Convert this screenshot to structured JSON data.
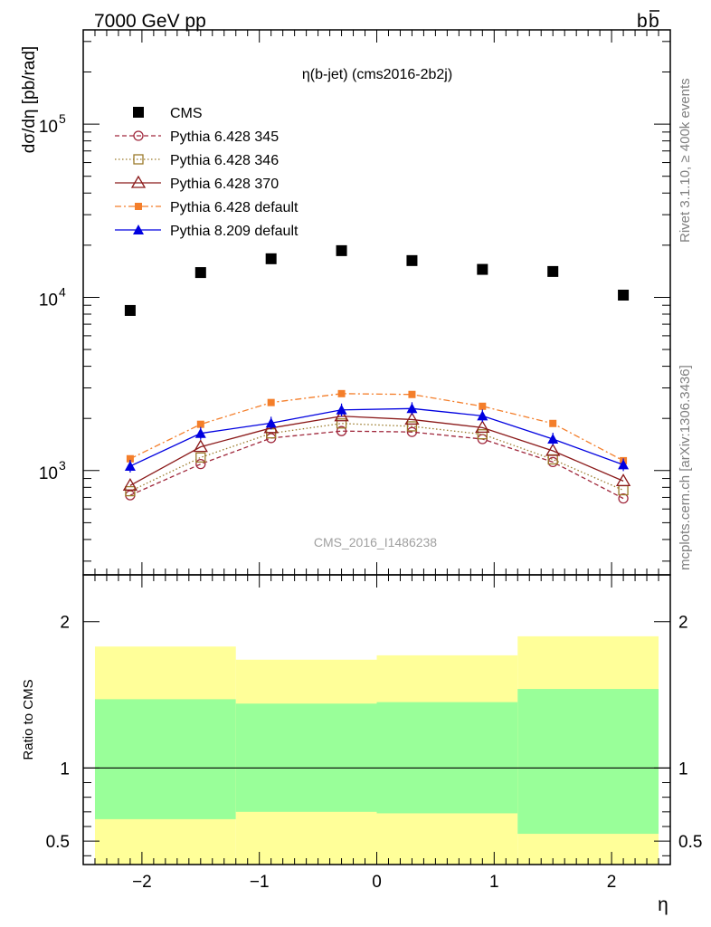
{
  "header": {
    "left": "7000 GeV pp",
    "right_main": "b",
    "right_bar": "b"
  },
  "side_labels": {
    "top": "Rivet 3.1.10, ≥ 400k events",
    "bottom": "mcplots.cern.ch [arXiv:1306.3436]"
  },
  "watermark": "CMS_2016_I1486238",
  "colors": {
    "cms": "#000000",
    "p345": "#a0283c",
    "p346": "#9a7a2a",
    "p370": "#8b1a1a",
    "p6def": "#f47e2a",
    "p8def": "#0000e0",
    "band_inner": "#99ff99",
    "band_outer": "#ffff99"
  },
  "chart_data": [
    {
      "type": "scatter",
      "title": "η(b-jet) (cms2016-2b2j)",
      "xlabel": "η",
      "ylabel": "dσ/dη [pb/rad]",
      "log_y": true,
      "xlim": [
        -2.5,
        2.5
      ],
      "ylim": [
        250,
        350000
      ],
      "x_ticks": [
        "−2",
        "−1",
        "0",
        "1",
        "2"
      ],
      "y_ticks": [
        {
          "value": 1000,
          "base": "10",
          "exp": "3"
        },
        {
          "value": 10000,
          "base": "10",
          "exp": "4"
        },
        {
          "value": 100000,
          "base": "10",
          "exp": "5"
        }
      ],
      "legend_position": "top-left",
      "x": [
        -2.1,
        -1.5,
        -0.9,
        -0.3,
        0.3,
        0.9,
        1.5,
        2.1
      ],
      "series": [
        {
          "key": "cms",
          "name": "CMS",
          "marker": "square-filled",
          "line": "none",
          "values": [
            8400,
            13900,
            16700,
            18600,
            16300,
            14500,
            14100,
            10300
          ]
        },
        {
          "key": "p345",
          "name": "Pythia 6.428 345",
          "marker": "circle-open",
          "line": "dashed",
          "values": [
            720,
            1090,
            1540,
            1690,
            1670,
            1520,
            1120,
            690
          ]
        },
        {
          "key": "p346",
          "name": "Pythia 6.428 346",
          "marker": "square-open",
          "line": "dotted",
          "values": [
            760,
            1190,
            1640,
            1870,
            1800,
            1620,
            1160,
            770
          ]
        },
        {
          "key": "p370",
          "name": "Pythia 6.428 370",
          "marker": "triangle-open",
          "line": "solid",
          "values": [
            820,
            1370,
            1760,
            2060,
            1970,
            1770,
            1300,
            870
          ]
        },
        {
          "key": "p6def",
          "name": "Pythia 6.428 default",
          "marker": "square-filled-small",
          "line": "dashdot",
          "values": [
            1170,
            1850,
            2470,
            2780,
            2750,
            2350,
            1870,
            1140
          ]
        },
        {
          "key": "p8def",
          "name": "Pythia 8.209 default",
          "marker": "triangle-filled",
          "line": "solid",
          "values": [
            1060,
            1640,
            1880,
            2240,
            2280,
            2070,
            1520,
            1080
          ]
        }
      ]
    },
    {
      "type": "area",
      "ylabel": "Ratio to CMS",
      "xlabel": "η",
      "xlim": [
        -2.5,
        2.5
      ],
      "ylim": [
        0.34,
        2.32
      ],
      "y_ticks": [
        "0.5",
        "1",
        "2"
      ],
      "reference_line": 1,
      "bins": [
        {
          "x0": -2.4,
          "x1": -1.2,
          "inner": [
            0.65,
            1.47
          ],
          "outer": [
            0.34,
            1.83
          ]
        },
        {
          "x0": -1.2,
          "x1": 0.0,
          "inner": [
            0.7,
            1.44
          ],
          "outer": [
            0.34,
            1.74
          ]
        },
        {
          "x0": 0.0,
          "x1": 1.2,
          "inner": [
            0.69,
            1.45
          ],
          "outer": [
            0.34,
            1.77
          ]
        },
        {
          "x0": 1.2,
          "x1": 2.4,
          "inner": [
            0.55,
            1.54
          ],
          "outer": [
            0.34,
            1.9
          ]
        }
      ]
    }
  ]
}
